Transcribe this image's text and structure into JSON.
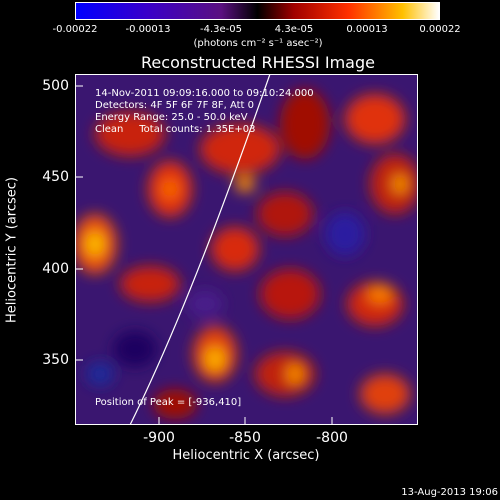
{
  "colorbar": {
    "ticks": [
      "-0.00022",
      "-0.00013",
      "-4.3e-05",
      "4.3e-05",
      "0.00013",
      "0.00022"
    ],
    "unit_label": "(photons cm⁻² s⁻¹ asec⁻²)"
  },
  "title": "Reconstructed RHESSI Image",
  "annotations": {
    "time": "14-Nov-2011 09:09:16.000 to 09:10:24.000",
    "detectors": "Detectors: 4F 5F 6F 7F 8F, Att 0",
    "energy": "Energy Range: 25.0 - 50.0 keV",
    "clean": "Clean     Total counts: 1.35E+03",
    "peak": "Position of Peak = [-936,410]"
  },
  "axes": {
    "xlabel": "Heliocentric X (arcsec)",
    "ylabel": "Heliocentric Y (arcsec)",
    "xticks": [
      "-900",
      "-850",
      "-800"
    ],
    "yticks": [
      "500",
      "450",
      "400",
      "350"
    ]
  },
  "footer": "13-Aug-2013 19:06"
}
